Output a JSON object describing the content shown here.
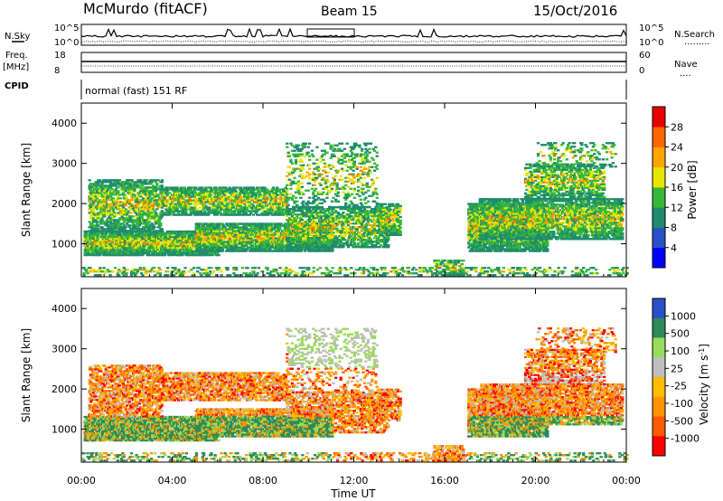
{
  "header": {
    "station": "McMurdo (fitACF)",
    "beam": "Beam 15",
    "date": "15/Oct/2016"
  },
  "summary": {
    "nsky_label": "N.Sky",
    "nsearch_label": "N.Search",
    "nsearch_dots": ".........",
    "noise_top": "10^5",
    "noise_bottom": "10^0",
    "noise_top_right": "10^5",
    "noise_bottom_right": "10^0",
    "freq_label": "Freq.",
    "freq_unit": "[MHz]",
    "freq_top": "18",
    "freq_bottom": "8",
    "nave_label": "Nave",
    "nave_dots": "....",
    "nave_top": "60",
    "nave_bottom": "0",
    "cpid_label": "CPID",
    "cpid_text": "normal (fast) 151 RF"
  },
  "colors": {
    "power_scale": [
      "#0000ff",
      "#2a50c8",
      "#1f8c6e",
      "#38b838",
      "#e6e600",
      "#ffa500",
      "#ff6600",
      "#e60000"
    ],
    "velocity_scale": [
      "#ff0000",
      "#ff5a00",
      "#ff9400",
      "#ffbe00",
      "#bebebe",
      "#9adc5a",
      "#2e8b57",
      "#2a50c8"
    ]
  },
  "chart_data": [
    {
      "type": "heatmap",
      "name": "power",
      "ylabel": "Slant Range [km]",
      "ylim": [
        180,
        4500
      ],
      "yticks": [
        "1000",
        "2000",
        "3000",
        "4000"
      ],
      "colorbar_label": "Power [dB]",
      "colorbar_ticks": [
        "4",
        "8",
        "12",
        "16",
        "20",
        "24",
        "28"
      ],
      "colorbar_range": [
        0,
        32
      ]
    },
    {
      "type": "heatmap",
      "name": "velocity",
      "ylabel": "Slant Range [km]",
      "ylim": [
        180,
        4500
      ],
      "yticks": [
        "1000",
        "2000",
        "3000",
        "4000"
      ],
      "colorbar_label": "Velocity [m s^-1]",
      "colorbar_ticks": [
        "1000",
        "500",
        "100",
        "25",
        "-25",
        "-100",
        "-500",
        "-1000"
      ],
      "xlabel": "Time UT",
      "xticks": [
        "00:00",
        "04:00",
        "08:00",
        "12:00",
        "16:00",
        "20:00",
        "00:00"
      ],
      "xlim": [
        0,
        24
      ]
    }
  ]
}
